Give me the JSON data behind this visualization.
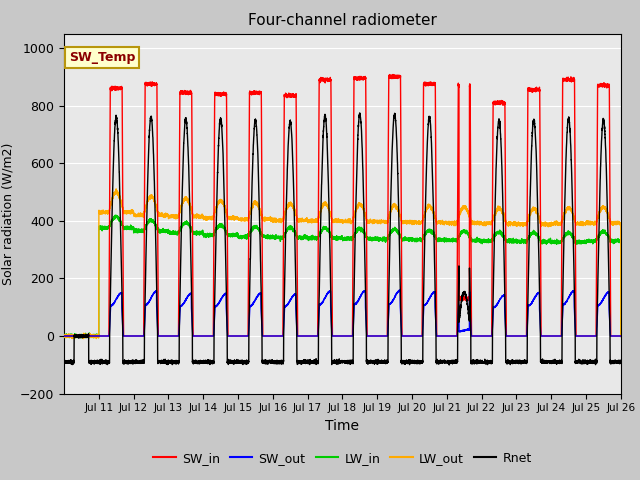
{
  "title": "Four-channel radiometer",
  "xlabel": "Time",
  "ylabel": "Solar radiation (W/m2)",
  "ylim": [
    -200,
    1050
  ],
  "xlim_days": [
    10,
    26
  ],
  "tick_days": [
    11,
    12,
    13,
    14,
    15,
    16,
    17,
    18,
    19,
    20,
    21,
    22,
    23,
    24,
    25,
    26
  ],
  "tick_labels": [
    "Jul 11",
    "Jul 12",
    "Jul 13",
    "Jul 14",
    "Jul 15",
    "Jul 16",
    "Jul 17",
    "Jul 18",
    "Jul 19",
    "Jul 20",
    "Jul 21",
    "Jul 22",
    "Jul 23",
    "Jul 24",
    "Jul 25",
    "Jul 26"
  ],
  "fig_bg_color": "#c8c8c8",
  "plot_bg_color": "#e8e8e8",
  "sw_temp_box_color": "#ffffcc",
  "sw_temp_text_color": "#8b0000",
  "sw_temp_border_color": "#b8960c",
  "grid_color": "#ffffff",
  "legend_items": [
    {
      "label": "SW_in",
      "color": "#ff0000",
      "lw": 1.5
    },
    {
      "label": "SW_out",
      "color": "#0000ff",
      "lw": 1.5
    },
    {
      "label": "LW_in",
      "color": "#00cc00",
      "lw": 1.5
    },
    {
      "label": "LW_out",
      "color": "#ffaa00",
      "lw": 1.5
    },
    {
      "label": "Rnet",
      "color": "#000000",
      "lw": 1.5
    }
  ],
  "yticks": [
    -200,
    0,
    200,
    400,
    600,
    800,
    1000
  ]
}
